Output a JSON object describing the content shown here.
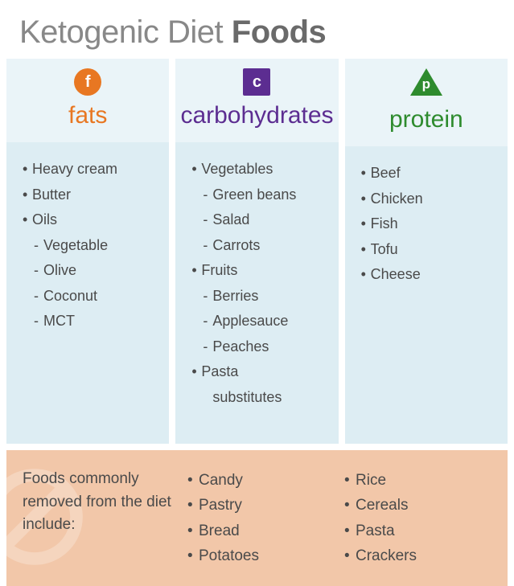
{
  "title": {
    "light": "Ketogenic Diet ",
    "bold": "Foods"
  },
  "columns": [
    {
      "letter": "f",
      "label": "fats",
      "color": "#e87722",
      "shape": "circle",
      "items": [
        {
          "text": "Heavy cream",
          "sub": false
        },
        {
          "text": "Butter",
          "sub": false
        },
        {
          "text": "Oils",
          "sub": false
        },
        {
          "text": "Vegetable",
          "sub": true
        },
        {
          "text": "Olive",
          "sub": true
        },
        {
          "text": "Coconut",
          "sub": true
        },
        {
          "text": "MCT",
          "sub": true
        }
      ]
    },
    {
      "letter": "c",
      "label": "carbohydrates",
      "color": "#5c2d91",
      "shape": "square",
      "items": [
        {
          "text": "Vegetables",
          "sub": false
        },
        {
          "text": "Green beans",
          "sub": true
        },
        {
          "text": "Salad",
          "sub": true
        },
        {
          "text": "Carrots",
          "sub": true
        },
        {
          "text": "Fruits",
          "sub": false
        },
        {
          "text": "Berries",
          "sub": true
        },
        {
          "text": "Applesauce",
          "sub": true
        },
        {
          "text": "Peaches",
          "sub": true
        },
        {
          "text": "Pasta",
          "sub": false
        },
        {
          "text": "substitutes",
          "sub": false,
          "nobullet": true
        }
      ]
    },
    {
      "letter": "p",
      "label": "protein",
      "color": "#2e8b2e",
      "shape": "triangle",
      "items": [
        {
          "text": "Beef",
          "sub": false
        },
        {
          "text": "Chicken",
          "sub": false
        },
        {
          "text": "Fish",
          "sub": false
        },
        {
          "text": "Tofu",
          "sub": false
        },
        {
          "text": "Cheese",
          "sub": false
        }
      ]
    }
  ],
  "removed": {
    "label": "Foods commonly removed from the diet include:",
    "col1": [
      "Candy",
      "Pastry",
      "Bread",
      "Potatoes"
    ],
    "col2": [
      "Rice",
      "Cereals",
      "Pasta",
      "Crackers"
    ],
    "bg_color": "#f2c7a9",
    "icon_color": "#e8b090"
  },
  "styles": {
    "header_bg": "#eaf4f8",
    "body_bg": "#ddedf3",
    "title_light_color": "#888888",
    "title_bold_color": "#6a6a6a",
    "text_color": "#4a4a4a",
    "title_fontsize": 40,
    "label_fontsize": 30,
    "item_fontsize": 18
  }
}
